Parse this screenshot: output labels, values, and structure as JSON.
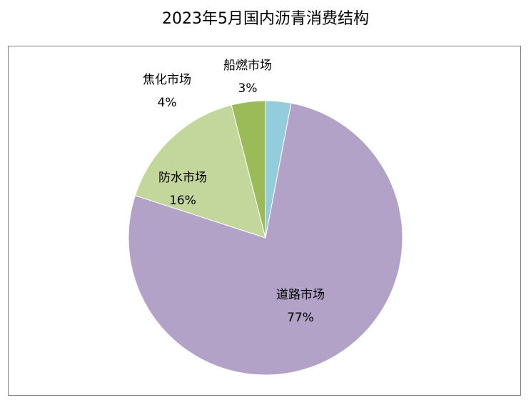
{
  "chart_data": {
    "type": "pie",
    "title": "2023年5月国内沥青消费结构",
    "slices": [
      {
        "label": "船燃市场",
        "value": 3,
        "value_text": "3%",
        "color": "#93cddd"
      },
      {
        "label": "道路市场",
        "value": 77,
        "value_text": "77%",
        "color": "#b3a2c7"
      },
      {
        "label": "防水市场",
        "value": 16,
        "value_text": "16%",
        "color": "#c3d69b"
      },
      {
        "label": "焦化市场",
        "value": 4,
        "value_text": "4%",
        "color": "#9bbb59"
      }
    ],
    "legend": "none",
    "start": "top",
    "direction": "clockwise"
  }
}
